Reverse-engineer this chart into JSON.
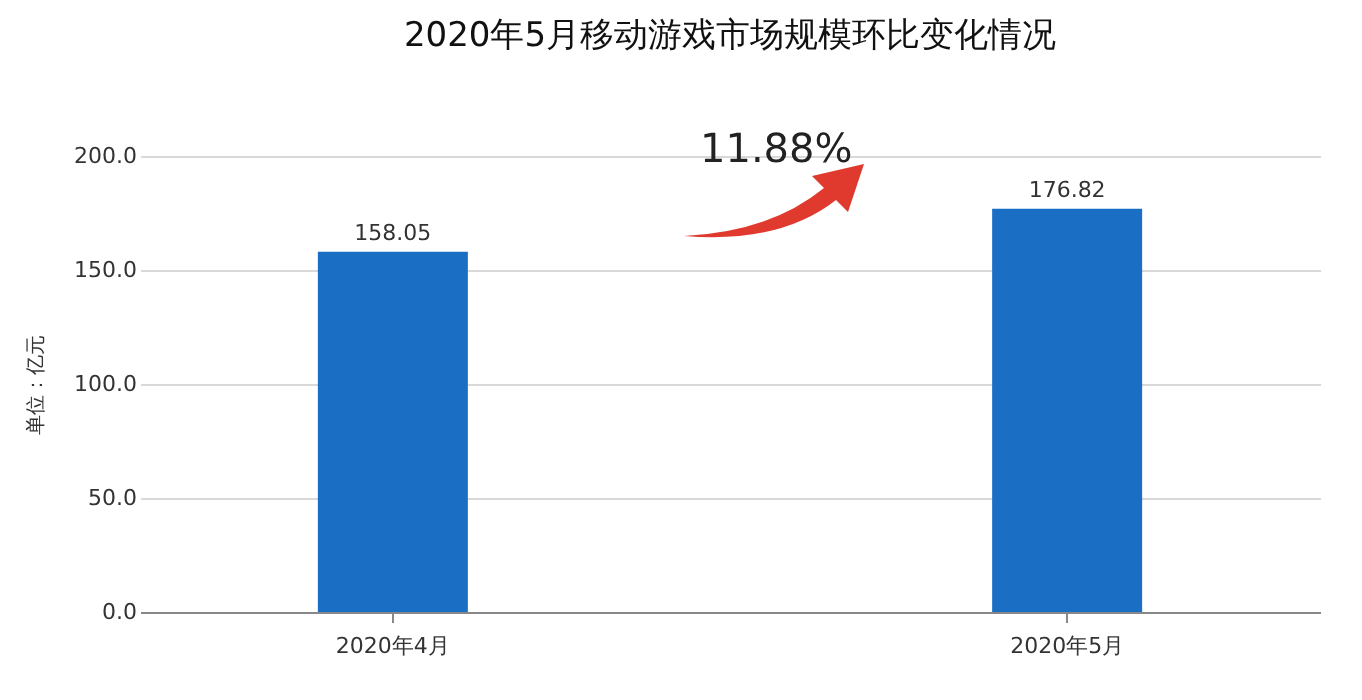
{
  "chart_data": {
    "type": "bar",
    "title": "2020年5月移动游戏市场规模环比变化情况",
    "ylabel": "单位：亿元",
    "categories": [
      "2020年4月",
      "2020年5月"
    ],
    "series": [
      {
        "color": "#1a6fc4",
        "values": [
          158.05,
          176.82
        ]
      }
    ],
    "ylim": [
      0,
      200
    ],
    "yticks": [
      {
        "value": 0,
        "label": "0.0"
      },
      {
        "value": 50,
        "label": "50.0"
      },
      {
        "value": 100,
        "label": "100.0"
      },
      {
        "value": 150,
        "label": "150.0"
      },
      {
        "value": 200,
        "label": "200.0"
      }
    ],
    "grid": "y",
    "data_labels": true,
    "annotations": [
      "11.88%"
    ]
  }
}
